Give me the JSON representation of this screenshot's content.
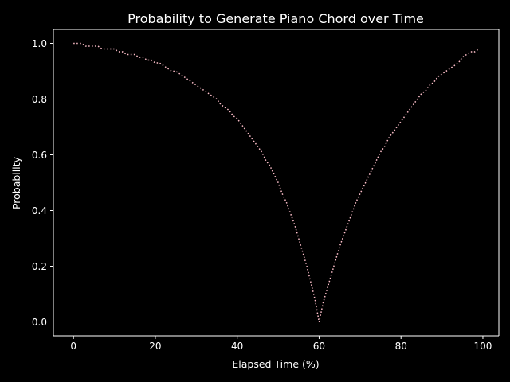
{
  "chart_data": {
    "type": "line",
    "title": "Probability to Generate Piano Chord over Time",
    "xlabel": "Elapsed Time (%)",
    "ylabel": "Probability",
    "xlim": [
      -4.9,
      103.9
    ],
    "ylim": [
      -0.05,
      1.05
    ],
    "xticks": [
      0,
      20,
      40,
      60,
      80,
      100
    ],
    "yticks": [
      0.0,
      0.2,
      0.4,
      0.6,
      0.8,
      1.0
    ],
    "xtick_labels": [
      "0",
      "20",
      "40",
      "60",
      "80",
      "100"
    ],
    "ytick_labels": [
      "0.0",
      "0.2",
      "0.4",
      "0.6",
      "0.8",
      "1.0"
    ],
    "grid": false,
    "line_style": "dotted",
    "series": [
      {
        "color": "#ffc0cb",
        "x": [
          0,
          1,
          2,
          3,
          4,
          5,
          6,
          7,
          8,
          9,
          10,
          11,
          12,
          13,
          14,
          15,
          16,
          17,
          18,
          19,
          20,
          21,
          22,
          23,
          24,
          25,
          26,
          27,
          28,
          29,
          30,
          31,
          32,
          33,
          34,
          35,
          36,
          37,
          38,
          39,
          40,
          41,
          42,
          43,
          44,
          45,
          46,
          47,
          48,
          49,
          50,
          51,
          52,
          53,
          54,
          55,
          56,
          57,
          58,
          59,
          60,
          61,
          62,
          63,
          64,
          65,
          66,
          67,
          68,
          69,
          70,
          71,
          72,
          73,
          74,
          75,
          76,
          77,
          78,
          79,
          80,
          81,
          82,
          83,
          84,
          85,
          86,
          87,
          88,
          89,
          90,
          91,
          92,
          93,
          94,
          95,
          96,
          97,
          98,
          99
        ],
        "y": [
          1.0,
          1.0,
          1.0,
          0.99,
          0.99,
          0.99,
          0.99,
          0.98,
          0.98,
          0.98,
          0.98,
          0.97,
          0.97,
          0.96,
          0.96,
          0.96,
          0.95,
          0.95,
          0.94,
          0.94,
          0.93,
          0.93,
          0.92,
          0.91,
          0.9,
          0.9,
          0.89,
          0.88,
          0.87,
          0.86,
          0.85,
          0.84,
          0.83,
          0.82,
          0.81,
          0.8,
          0.78,
          0.77,
          0.76,
          0.74,
          0.73,
          0.71,
          0.69,
          0.67,
          0.65,
          0.63,
          0.61,
          0.58,
          0.56,
          0.53,
          0.5,
          0.46,
          0.43,
          0.39,
          0.35,
          0.3,
          0.25,
          0.2,
          0.14,
          0.08,
          0.0,
          0.07,
          0.12,
          0.17,
          0.22,
          0.27,
          0.31,
          0.35,
          0.39,
          0.43,
          0.46,
          0.49,
          0.52,
          0.55,
          0.58,
          0.61,
          0.63,
          0.66,
          0.68,
          0.7,
          0.72,
          0.74,
          0.76,
          0.78,
          0.8,
          0.82,
          0.83,
          0.85,
          0.86,
          0.88,
          0.89,
          0.9,
          0.91,
          0.92,
          0.93,
          0.95,
          0.96,
          0.97,
          0.97,
          0.98
        ]
      }
    ]
  }
}
